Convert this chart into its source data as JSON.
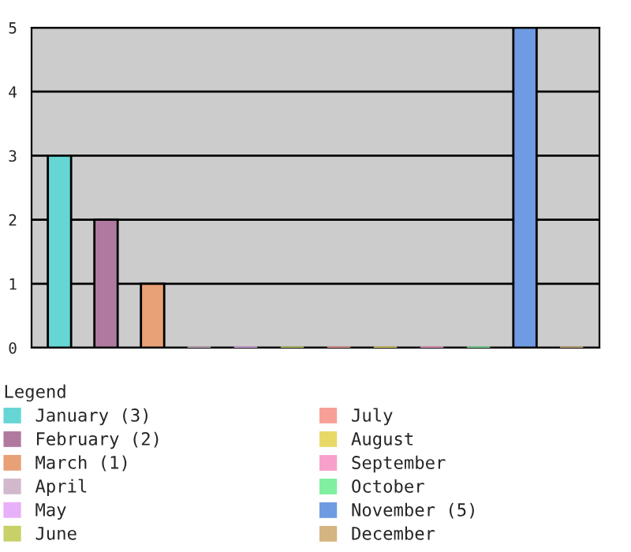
{
  "chart_data": {
    "type": "bar",
    "legend_title": "Legend",
    "categories": [
      null,
      null,
      null,
      null,
      null,
      null,
      null,
      null,
      null,
      null,
      null,
      null
    ],
    "series": [
      {
        "name": "January (3)",
        "color": "#66d6d4",
        "values": [
          3,
          null,
          null,
          null,
          null,
          null,
          null,
          null,
          null,
          null,
          null,
          null
        ]
      },
      {
        "name": "February (2)",
        "color": "#b07aa0",
        "values": [
          null,
          2,
          null,
          null,
          null,
          null,
          null,
          null,
          null,
          null,
          null,
          null
        ]
      },
      {
        "name": "March (1)",
        "color": "#e8a076",
        "values": [
          null,
          null,
          1,
          null,
          null,
          null,
          null,
          null,
          null,
          null,
          null,
          null
        ]
      },
      {
        "name": "April",
        "color": "#d2b8cc",
        "values": [
          null,
          null,
          null,
          0,
          null,
          null,
          null,
          null,
          null,
          null,
          null,
          null
        ]
      },
      {
        "name": "May",
        "color": "#e8b0f8",
        "values": [
          null,
          null,
          null,
          null,
          0,
          null,
          null,
          null,
          null,
          null,
          null,
          null
        ]
      },
      {
        "name": "June",
        "color": "#c8d068",
        "values": [
          null,
          null,
          null,
          null,
          null,
          0,
          null,
          null,
          null,
          null,
          null,
          null
        ]
      },
      {
        "name": "July",
        "color": "#f8a098",
        "values": [
          null,
          null,
          null,
          null,
          null,
          null,
          0,
          null,
          null,
          null,
          null,
          null
        ]
      },
      {
        "name": "August",
        "color": "#e8d868",
        "values": [
          null,
          null,
          null,
          null,
          null,
          null,
          null,
          0,
          null,
          null,
          null,
          null
        ]
      },
      {
        "name": "September",
        "color": "#f8a0cc",
        "values": [
          null,
          null,
          null,
          null,
          null,
          null,
          null,
          null,
          0,
          null,
          null,
          null
        ]
      },
      {
        "name": "October",
        "color": "#80f0a0",
        "values": [
          null,
          null,
          null,
          null,
          null,
          null,
          null,
          null,
          null,
          0,
          null,
          null
        ]
      },
      {
        "name": "November (5)",
        "color": "#6f9be3",
        "values": [
          null,
          null,
          null,
          null,
          null,
          null,
          null,
          null,
          null,
          null,
          5,
          null
        ]
      },
      {
        "name": "December",
        "color": "#d4b480",
        "values": [
          null,
          null,
          null,
          null,
          null,
          null,
          null,
          null,
          null,
          null,
          null,
          0
        ]
      }
    ],
    "ylim": [
      0,
      5
    ],
    "yticks": [
      0,
      1,
      2,
      3,
      4,
      5
    ],
    "grid": "y",
    "legend": "bottom",
    "tick_labels": "y"
  }
}
